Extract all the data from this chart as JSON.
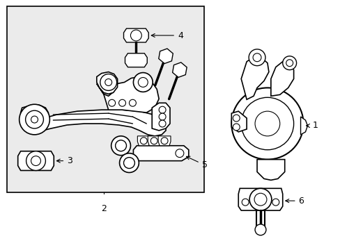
{
  "background_color": "#ffffff",
  "box_color": "#ebebeb",
  "line_color": "#000000",
  "fig_width": 4.89,
  "fig_height": 3.6,
  "dpi": 100
}
